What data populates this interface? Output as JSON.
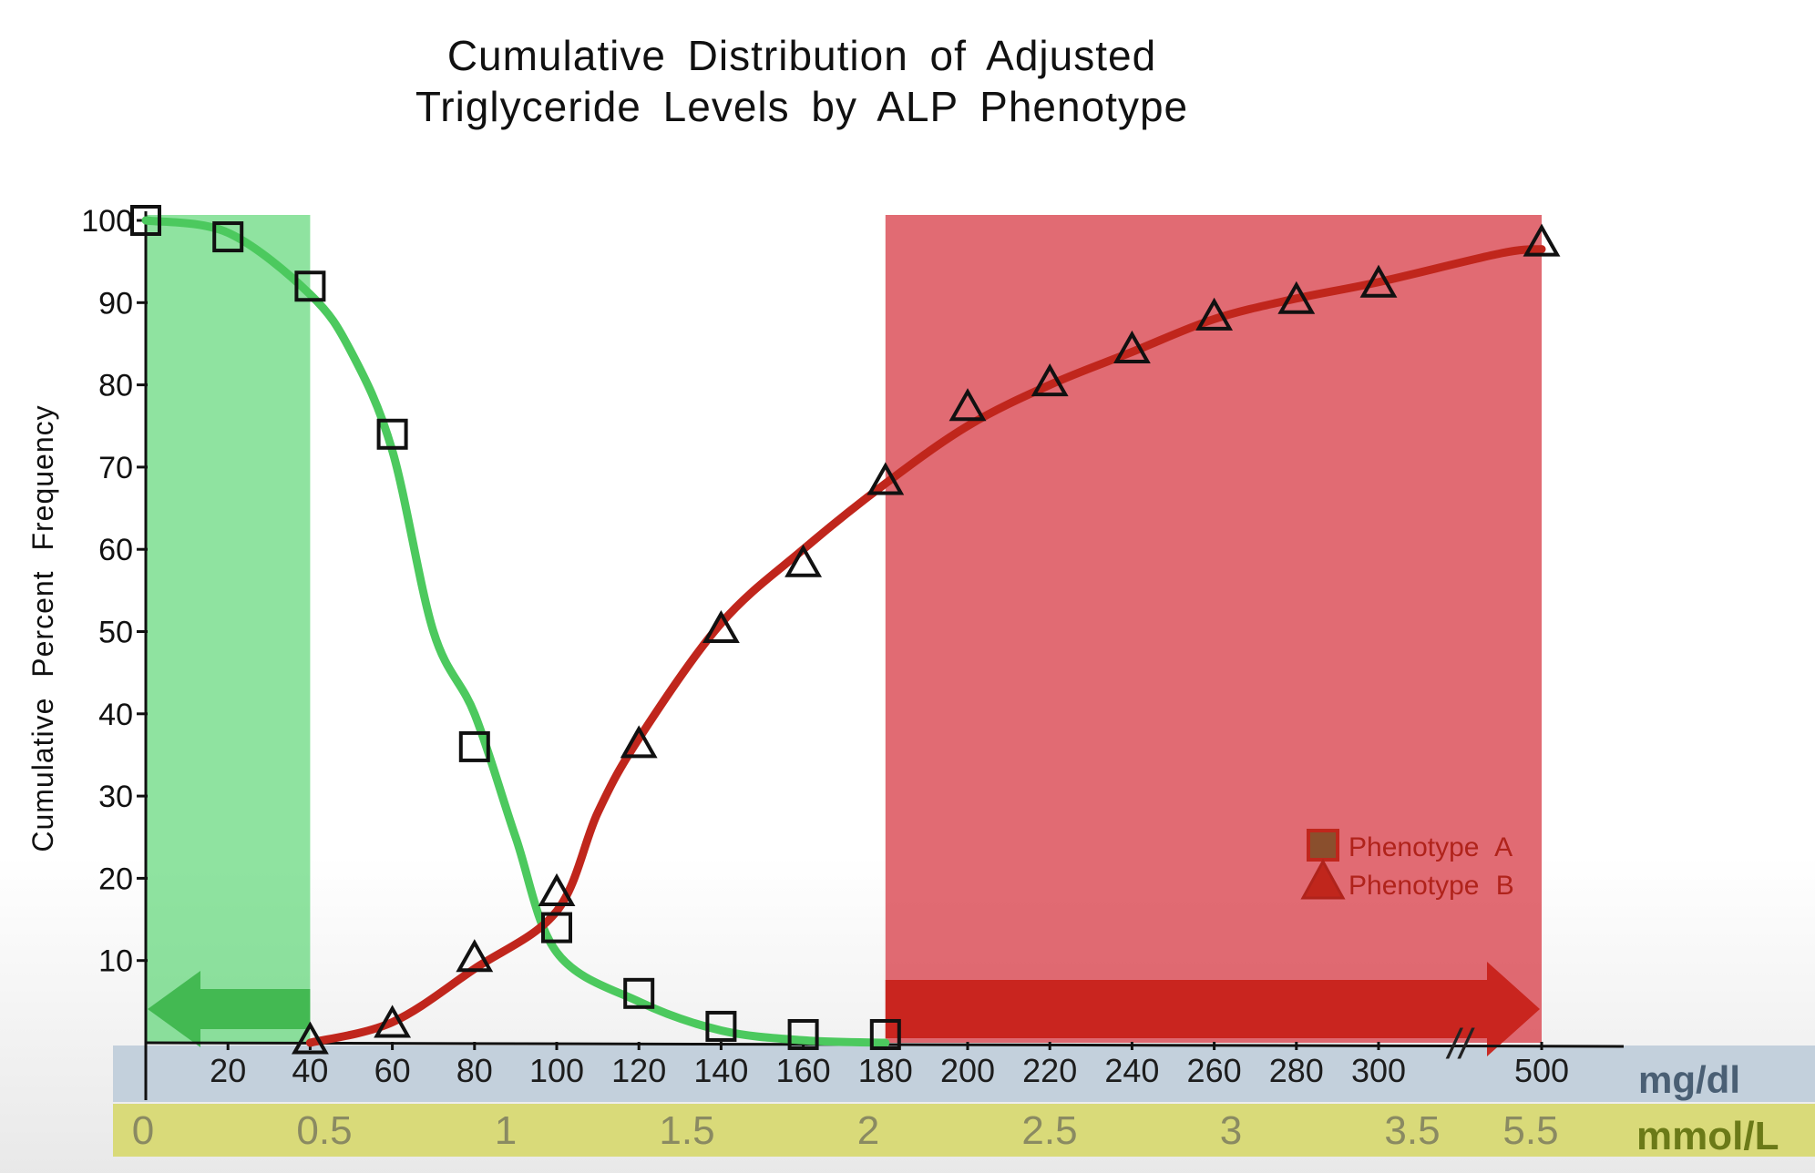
{
  "chart_data": {
    "type": "line",
    "title_lines": [
      "Cumulative Distribution of Adjusted",
      "Triglyceride Levels by ALP Phenotype"
    ],
    "ylabel": "Cumulative Percent Frequency",
    "ylim": [
      0,
      100
    ],
    "yticks": [
      10,
      20,
      30,
      40,
      50,
      60,
      70,
      80,
      90,
      100
    ],
    "x_unit_primary": "mg/dl",
    "x_unit_secondary": "mmol/L",
    "x_ticks_mgdl": [
      "20",
      "40",
      "60",
      "80",
      "100",
      "120",
      "140",
      "160",
      "180",
      "200",
      "220",
      "240",
      "260",
      "280",
      "300",
      "500"
    ],
    "x_ticks_mmol": [
      "0",
      "0.5",
      "1",
      "1.5",
      "2",
      "2.5",
      "3",
      "3.5",
      "5.5"
    ],
    "axis_break": "//",
    "legend_position": "lower-right",
    "series": [
      {
        "name": "Phenotype A",
        "marker": "square",
        "color": "#4cc95e",
        "points": [
          {
            "x": 0,
            "y": 100
          },
          {
            "x": 20,
            "y": 98
          },
          {
            "x": 40,
            "y": 92
          },
          {
            "x": 60,
            "y": 74
          },
          {
            "x": 80,
            "y": 36
          },
          {
            "x": 100,
            "y": 14
          },
          {
            "x": 120,
            "y": 6
          },
          {
            "x": 140,
            "y": 2
          },
          {
            "x": 160,
            "y": 1
          },
          {
            "x": 180,
            "y": 1
          }
        ],
        "curve": [
          {
            "x": 0,
            "y": 100
          },
          {
            "x": 20,
            "y": 98.5
          },
          {
            "x": 40,
            "y": 91
          },
          {
            "x": 50,
            "y": 84
          },
          {
            "x": 60,
            "y": 72
          },
          {
            "x": 70,
            "y": 50
          },
          {
            "x": 80,
            "y": 40
          },
          {
            "x": 90,
            "y": 25
          },
          {
            "x": 100,
            "y": 11
          },
          {
            "x": 120,
            "y": 5
          },
          {
            "x": 140,
            "y": 1.5
          },
          {
            "x": 160,
            "y": 0.3
          },
          {
            "x": 180,
            "y": 0
          }
        ]
      },
      {
        "name": "Phenotype B",
        "marker": "triangle",
        "color": "#c0261c",
        "points": [
          {
            "x": 40,
            "y": 0
          },
          {
            "x": 60,
            "y": 2
          },
          {
            "x": 80,
            "y": 10
          },
          {
            "x": 100,
            "y": 18
          },
          {
            "x": 120,
            "y": 36
          },
          {
            "x": 140,
            "y": 50
          },
          {
            "x": 160,
            "y": 58
          },
          {
            "x": 180,
            "y": 68
          },
          {
            "x": 200,
            "y": 77
          },
          {
            "x": 220,
            "y": 80
          },
          {
            "x": 240,
            "y": 84
          },
          {
            "x": 260,
            "y": 88
          },
          {
            "x": 280,
            "y": 90
          },
          {
            "x": 300,
            "y": 92
          },
          {
            "x": 500,
            "y": 97
          }
        ],
        "curve": [
          {
            "x": 40,
            "y": 0
          },
          {
            "x": 60,
            "y": 2.5
          },
          {
            "x": 80,
            "y": 9
          },
          {
            "x": 100,
            "y": 16
          },
          {
            "x": 110,
            "y": 28
          },
          {
            "x": 120,
            "y": 37
          },
          {
            "x": 140,
            "y": 51
          },
          {
            "x": 160,
            "y": 60
          },
          {
            "x": 180,
            "y": 68
          },
          {
            "x": 200,
            "y": 75
          },
          {
            "x": 220,
            "y": 80
          },
          {
            "x": 240,
            "y": 84
          },
          {
            "x": 260,
            "y": 88
          },
          {
            "x": 280,
            "y": 90.5
          },
          {
            "x": 300,
            "y": 92.5
          },
          {
            "x": 450,
            "y": 96
          },
          {
            "x": 500,
            "y": 96.5
          }
        ]
      }
    ],
    "highlights": [
      {
        "name": "low-triglyceride-zone",
        "x_from": 0,
        "x_to": 40,
        "color": "#3ecf5c",
        "arrow": "left"
      },
      {
        "name": "high-triglyceride-zone",
        "x_from": 180,
        "x_to": 500,
        "color": "#d8414b",
        "arrow": "right"
      }
    ],
    "colors": {
      "mgdl_band": "#c3d0dc",
      "mmol_band": "#d9da79",
      "mmol_unit_text": "#6b7a18",
      "mgdl_unit_text": "#4a5f74"
    }
  }
}
